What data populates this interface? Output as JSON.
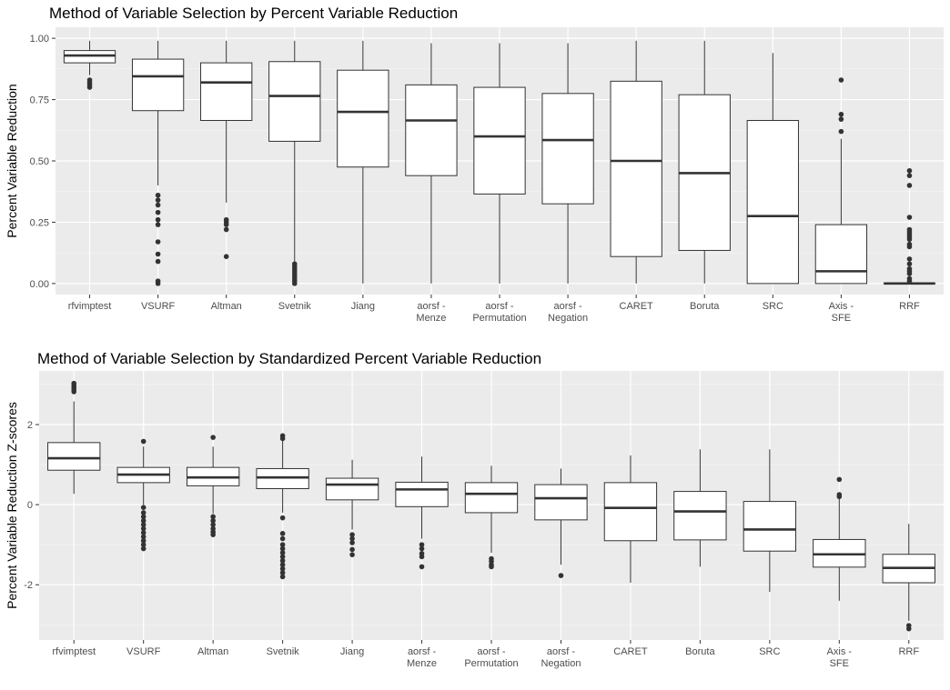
{
  "chart_data": [
    {
      "type": "box",
      "title": "Method of Variable Selection by Percent Variable Reduction",
      "xlabel": "",
      "ylabel": "Percent Variable Reduction",
      "ylim": [
        -0.045,
        1.045
      ],
      "yticks": [
        0.0,
        0.25,
        0.5,
        0.75,
        1.0
      ],
      "ytick_labels": [
        "0.00",
        "0.25",
        "0.50",
        "0.75",
        "1.00"
      ],
      "grid": true,
      "categories": [
        "rfvimptest",
        "VSURF",
        "Altman",
        "Svetnik",
        "Jiang",
        "aorsf - Menze",
        "aorsf - Permutation",
        "aorsf - Negation",
        "CARET",
        "Boruta",
        "SRC",
        "Axis - SFE",
        "RRF"
      ],
      "category_lines": [
        [
          "rfvimptest"
        ],
        [
          "VSURF"
        ],
        [
          "Altman"
        ],
        [
          "Svetnik"
        ],
        [
          "Jiang"
        ],
        [
          "aorsf -",
          "Menze"
        ],
        [
          "aorsf -",
          "Permutation"
        ],
        [
          "aorsf -",
          "Negation"
        ],
        [
          "CARET"
        ],
        [
          "Boruta"
        ],
        [
          "SRC"
        ],
        [
          "Axis -",
          "SFE"
        ],
        [
          "RRF"
        ]
      ],
      "boxes": [
        {
          "whisker_low": 0.85,
          "q1": 0.9,
          "median": 0.93,
          "q3": 0.95,
          "whisker_high": 0.99,
          "outliers": [
            0.8,
            0.81,
            0.82,
            0.83
          ]
        },
        {
          "whisker_low": 0.4,
          "q1": 0.705,
          "median": 0.845,
          "q3": 0.915,
          "whisker_high": 0.99,
          "outliers": [
            0.36,
            0.34,
            0.32,
            0.29,
            0.26,
            0.24,
            0.17,
            0.12,
            0.09,
            0.01,
            0.0
          ]
        },
        {
          "whisker_low": 0.33,
          "q1": 0.665,
          "median": 0.82,
          "q3": 0.9,
          "whisker_high": 0.99,
          "outliers": [
            0.26,
            0.25,
            0.24,
            0.22,
            0.11
          ]
        },
        {
          "whisker_low": 0.09,
          "q1": 0.58,
          "median": 0.765,
          "q3": 0.905,
          "whisker_high": 0.99,
          "outliers": [
            0.08,
            0.07,
            0.06,
            0.05,
            0.04,
            0.03,
            0.02,
            0.01,
            0.0
          ]
        },
        {
          "whisker_low": 0.0,
          "q1": 0.475,
          "median": 0.7,
          "q3": 0.87,
          "whisker_high": 0.99,
          "outliers": []
        },
        {
          "whisker_low": 0.0,
          "q1": 0.44,
          "median": 0.665,
          "q3": 0.81,
          "whisker_high": 0.98,
          "outliers": []
        },
        {
          "whisker_low": 0.0,
          "q1": 0.365,
          "median": 0.6,
          "q3": 0.8,
          "whisker_high": 0.98,
          "outliers": []
        },
        {
          "whisker_low": 0.0,
          "q1": 0.325,
          "median": 0.585,
          "q3": 0.775,
          "whisker_high": 0.98,
          "outliers": []
        },
        {
          "whisker_low": 0.0,
          "q1": 0.11,
          "median": 0.5,
          "q3": 0.825,
          "whisker_high": 0.99,
          "outliers": []
        },
        {
          "whisker_low": 0.0,
          "q1": 0.135,
          "median": 0.45,
          "q3": 0.77,
          "whisker_high": 0.99,
          "outliers": []
        },
        {
          "whisker_low": 0.0,
          "q1": 0.0,
          "median": 0.275,
          "q3": 0.665,
          "whisker_high": 0.94,
          "outliers": []
        },
        {
          "whisker_low": 0.0,
          "q1": 0.0,
          "median": 0.05,
          "q3": 0.24,
          "whisker_high": 0.59,
          "outliers": [
            0.62,
            0.67,
            0.69,
            0.83
          ]
        },
        {
          "whisker_low": 0.0,
          "q1": 0.0,
          "median": 0.0,
          "q3": 0.0,
          "whisker_high": 0.0,
          "outliers": [
            0.46,
            0.44,
            0.4,
            0.27,
            0.22,
            0.21,
            0.2,
            0.19,
            0.18,
            0.16,
            0.15,
            0.1,
            0.08,
            0.06,
            0.05,
            0.04,
            0.02,
            0.01
          ]
        }
      ]
    },
    {
      "type": "box",
      "title": "Method of Variable Selection by Standardized Percent Variable Reduction",
      "xlabel": "",
      "ylabel": "Percent Variable Reduction Z-scores",
      "ylim": [
        -3.38,
        3.34
      ],
      "yticks": [
        -2,
        0,
        2
      ],
      "ytick_labels": [
        "-2",
        "0",
        "2"
      ],
      "grid": true,
      "categories": [
        "rfvimptest",
        "VSURF",
        "Altman",
        "Svetnik",
        "Jiang",
        "aorsf - Menze",
        "aorsf - Permutation",
        "aorsf - Negation",
        "CARET",
        "Boruta",
        "SRC",
        "Axis - SFE",
        "RRF"
      ],
      "category_lines": [
        [
          "rfvimptest"
        ],
        [
          "VSURF"
        ],
        [
          "Altman"
        ],
        [
          "Svetnik"
        ],
        [
          "Jiang"
        ],
        [
          "aorsf -",
          "Menze"
        ],
        [
          "aorsf -",
          "Permutation"
        ],
        [
          "aorsf -",
          "Negation"
        ],
        [
          "CARET"
        ],
        [
          "Boruta"
        ],
        [
          "SRC"
        ],
        [
          "Axis -",
          "SFE"
        ],
        [
          "RRF"
        ]
      ],
      "boxes": [
        {
          "whisker_low": 0.27,
          "q1": 0.86,
          "median": 1.16,
          "q3": 1.55,
          "whisker_high": 2.58,
          "outliers": [
            2.82,
            2.88,
            2.93,
            2.98,
            3.03
          ]
        },
        {
          "whisker_low": 0.0,
          "q1": 0.55,
          "median": 0.75,
          "q3": 0.93,
          "whisker_high": 1.45,
          "outliers": [
            1.58,
            -0.07,
            -0.2,
            -0.3,
            -0.4,
            -0.5,
            -0.6,
            -0.7,
            -0.8,
            -0.9,
            -1.0,
            -1.1
          ]
        },
        {
          "whisker_low": -0.22,
          "q1": 0.47,
          "median": 0.68,
          "q3": 0.93,
          "whisker_high": 1.45,
          "outliers": [
            1.68,
            -0.3,
            -0.4,
            -0.5,
            -0.6,
            -0.68,
            -0.75
          ]
        },
        {
          "whisker_low": -0.2,
          "q1": 0.4,
          "median": 0.68,
          "q3": 0.9,
          "whisker_high": 1.6,
          "outliers": [
            1.65,
            1.72,
            -0.33,
            -0.72,
            -0.85,
            -1.0,
            -1.1,
            -1.2,
            -1.3,
            -1.4,
            -1.5,
            -1.6,
            -1.7,
            -1.8
          ]
        },
        {
          "whisker_low": -0.62,
          "q1": 0.12,
          "median": 0.5,
          "q3": 0.66,
          "whisker_high": 1.12,
          "outliers": [
            -0.75,
            -0.85,
            -0.95,
            -1.12,
            -1.25
          ]
        },
        {
          "whisker_low": -0.85,
          "q1": -0.05,
          "median": 0.38,
          "q3": 0.56,
          "whisker_high": 1.2,
          "outliers": [
            -1.0,
            -1.1,
            -1.22,
            -1.3,
            -1.55
          ]
        },
        {
          "whisker_low": -1.2,
          "q1": -0.2,
          "median": 0.27,
          "q3": 0.55,
          "whisker_high": 0.97,
          "outliers": [
            -1.35,
            -1.42,
            -1.5,
            -1.55
          ]
        },
        {
          "whisker_low": -1.5,
          "q1": -0.38,
          "median": 0.16,
          "q3": 0.5,
          "whisker_high": 0.9,
          "outliers": [
            -1.77
          ]
        },
        {
          "whisker_low": -1.95,
          "q1": -0.9,
          "median": -0.08,
          "q3": 0.55,
          "whisker_high": 1.23,
          "outliers": []
        },
        {
          "whisker_low": -1.55,
          "q1": -0.88,
          "median": -0.17,
          "q3": 0.33,
          "whisker_high": 1.38,
          "outliers": []
        },
        {
          "whisker_low": -2.18,
          "q1": -1.16,
          "median": -0.62,
          "q3": 0.08,
          "whisker_high": 1.38,
          "outliers": []
        },
        {
          "whisker_low": -2.4,
          "q1": -1.56,
          "median": -1.24,
          "q3": -0.87,
          "whisker_high": 0.15,
          "outliers": [
            0.2,
            0.25,
            0.63
          ]
        },
        {
          "whisker_low": -2.9,
          "q1": -1.95,
          "median": -1.58,
          "q3": -1.24,
          "whisker_high": -0.48,
          "outliers": [
            -3.02,
            -3.1
          ]
        }
      ]
    }
  ]
}
